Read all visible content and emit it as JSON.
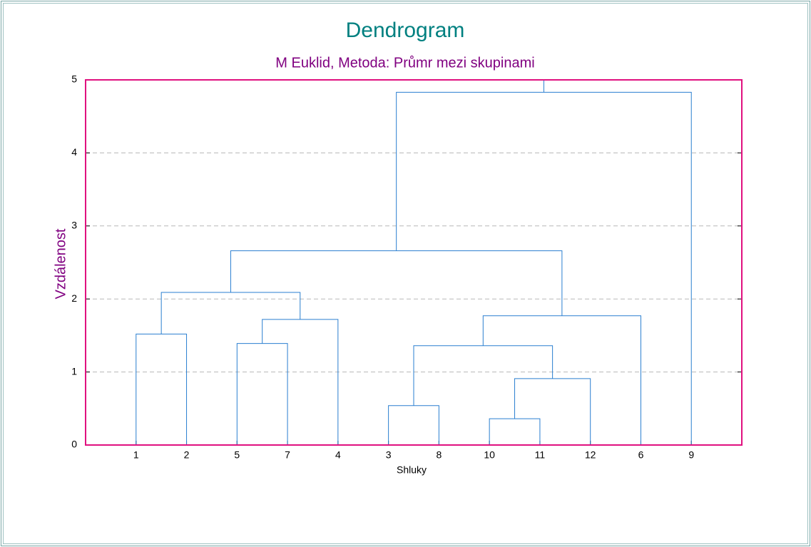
{
  "chart_data": {
    "type": "dendrogram",
    "title": "Dendrogram",
    "subtitle": "M Euklid, Metoda: Průmr mezi skupinami",
    "x_label": "Shluky",
    "y_label": "Vzdálenost",
    "categories": [
      "1",
      "2",
      "5",
      "7",
      "4",
      "3",
      "8",
      "10",
      "11",
      "12",
      "6",
      "9"
    ],
    "merges": [
      {
        "children": [
          0,
          1
        ],
        "height": 1.52
      },
      {
        "children": [
          2,
          3
        ],
        "height": 1.39
      },
      {
        "children": [
          13,
          4
        ],
        "height": 1.72
      },
      {
        "children": [
          12,
          14
        ],
        "height": 2.09
      },
      {
        "children": [
          5,
          6
        ],
        "height": 0.54
      },
      {
        "children": [
          7,
          8
        ],
        "height": 0.36
      },
      {
        "children": [
          17,
          9
        ],
        "height": 0.91
      },
      {
        "children": [
          16,
          18
        ],
        "height": 1.36
      },
      {
        "children": [
          19,
          10
        ],
        "height": 1.77
      },
      {
        "children": [
          15,
          20
        ],
        "height": 2.66
      },
      {
        "children": [
          21,
          11
        ],
        "height": 4.83
      }
    ],
    "color": "#2a7fd0",
    "ylim": [
      0,
      5
    ],
    "yticks": [
      0,
      1,
      2,
      3,
      4,
      5
    ],
    "grid": true
  }
}
